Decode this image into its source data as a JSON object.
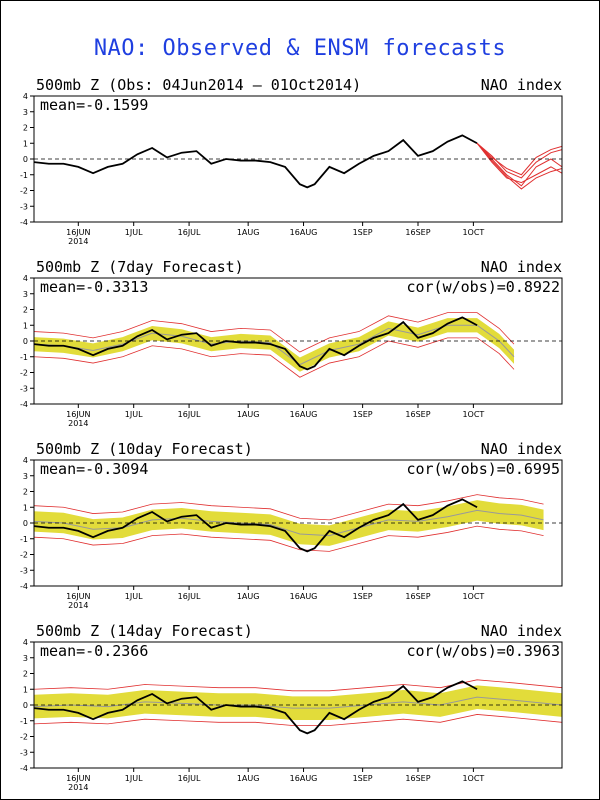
{
  "title": "NAO: Observed & ENSM forecasts",
  "x_ticks": [
    "16JUN",
    "1JUL",
    "16JUL",
    "1AUG",
    "16AUG",
    "1SEP",
    "16SEP",
    "1OCT"
  ],
  "x_tick_days": [
    12,
    27,
    42,
    58,
    73,
    89,
    104,
    119
  ],
  "x_year_label": "2014",
  "x_range_days": [
    0,
    143
  ],
  "y_ticks": [
    4,
    3,
    2,
    1,
    0,
    -1,
    -2,
    -3,
    -4
  ],
  "colors": {
    "title": "#1f3fe0",
    "observed": "#000000",
    "member": "#e03030",
    "spread": "#e2dc3a",
    "ensemble_mean": "#999999"
  },
  "panels": [
    {
      "title": "500mb Z (Obs: 04Jun2014 – 01Oct2014)",
      "right_label": "NAO index",
      "mean_label": "mean=-0.1599",
      "cor_label": ""
    },
    {
      "title": "500mb Z (7day Forecast)",
      "right_label": "NAO index",
      "mean_label": "mean=-0.3313",
      "cor_label": "cor(w/obs)=0.8922"
    },
    {
      "title": "500mb Z (10day Forecast)",
      "right_label": "NAO index",
      "mean_label": "mean=-0.3094",
      "cor_label": "cor(w/obs)=0.6995"
    },
    {
      "title": "500mb Z (14day Forecast)",
      "right_label": "NAO index",
      "mean_label": "mean=-0.2366",
      "cor_label": "cor(w/obs)=0.3963"
    }
  ],
  "chart_data": {
    "type": "line",
    "x_unit": "days since 04Jun2014",
    "ylim": [
      -4,
      4
    ],
    "grid": false,
    "zero_line": "dashed",
    "observed": {
      "x": [
        0,
        4,
        8,
        12,
        16,
        20,
        24,
        28,
        32,
        36,
        40,
        44,
        48,
        52,
        56,
        60,
        64,
        68,
        72,
        74,
        76,
        80,
        84,
        88,
        92,
        96,
        100,
        104,
        108,
        112,
        116,
        120
      ],
      "y": [
        -0.2,
        -0.3,
        -0.3,
        -0.5,
        -0.9,
        -0.5,
        -0.3,
        0.3,
        0.7,
        0.1,
        0.4,
        0.5,
        -0.3,
        0.0,
        -0.1,
        -0.1,
        -0.2,
        -0.5,
        -1.6,
        -1.8,
        -1.6,
        -0.5,
        -0.9,
        -0.3,
        0.2,
        0.5,
        1.2,
        0.2,
        0.5,
        1.1,
        1.5,
        1.0
      ]
    },
    "obs_forecast_members": {
      "x": [
        120,
        124,
        128,
        132,
        136,
        140,
        143
      ],
      "members": [
        [
          1.0,
          0.0,
          -1.0,
          -1.7,
          -0.5,
          0.0,
          -0.5
        ],
        [
          1.0,
          0.2,
          -0.8,
          -1.2,
          -0.2,
          0.4,
          0.6
        ],
        [
          1.0,
          -0.2,
          -1.2,
          -1.5,
          -1.0,
          -0.5,
          -0.9
        ],
        [
          1.0,
          0.1,
          -0.6,
          -1.0,
          0.1,
          0.6,
          0.8
        ],
        [
          1.0,
          -0.1,
          -1.1,
          -1.9,
          -1.2,
          -0.8,
          -0.6
        ]
      ]
    },
    "forecasts": [
      {
        "lead": "7day",
        "x": [
          0,
          8,
          16,
          24,
          32,
          40,
          48,
          56,
          64,
          72,
          80,
          88,
          96,
          104,
          112,
          120,
          126,
          130
        ],
        "mean": [
          -0.2,
          -0.3,
          -0.6,
          -0.2,
          0.5,
          0.3,
          -0.2,
          0.0,
          -0.1,
          -1.5,
          -0.6,
          -0.2,
          0.8,
          0.4,
          1.0,
          1.0,
          0.0,
          -1.0
        ],
        "spread": 0.45
      },
      {
        "lead": "10day",
        "x": [
          0,
          8,
          16,
          24,
          32,
          40,
          48,
          56,
          64,
          72,
          80,
          88,
          96,
          104,
          112,
          120,
          126,
          132,
          138
        ],
        "mean": [
          0.1,
          0.0,
          -0.4,
          -0.3,
          0.2,
          0.3,
          0.1,
          0.0,
          -0.1,
          -0.7,
          -0.8,
          -0.3,
          0.2,
          0.1,
          0.4,
          0.8,
          0.6,
          0.5,
          0.2
        ],
        "spread": 0.65
      },
      {
        "lead": "14day",
        "x": [
          0,
          10,
          20,
          30,
          40,
          50,
          60,
          70,
          80,
          90,
          100,
          110,
          120,
          130,
          143
        ],
        "mean": [
          -0.1,
          0.0,
          -0.1,
          0.2,
          0.1,
          0.0,
          0.0,
          -0.2,
          -0.2,
          0.0,
          0.2,
          0.0,
          0.5,
          0.3,
          0.0
        ],
        "spread": 0.75
      }
    ]
  }
}
